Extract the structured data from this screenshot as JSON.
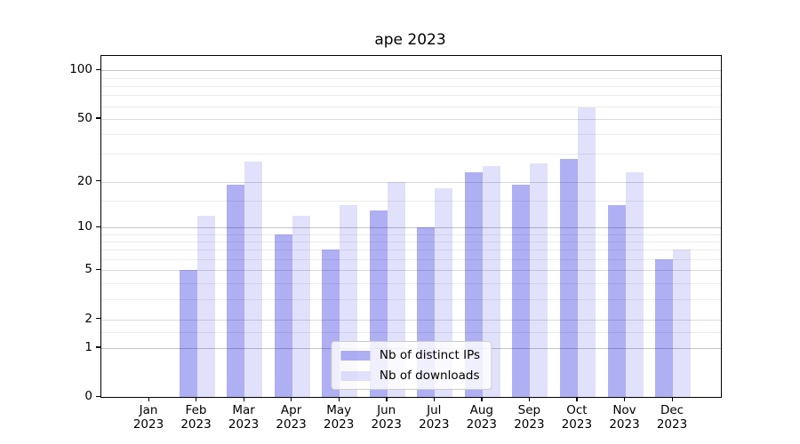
{
  "title": "ape 2023",
  "chart_data": {
    "type": "bar",
    "title": "ape 2023",
    "categories": [
      "Jan 2023",
      "Feb 2023",
      "Mar 2023",
      "Apr 2023",
      "May 2023",
      "Jun 2023",
      "Jul 2023",
      "Aug 2023",
      "Sep 2023",
      "Oct 2023",
      "Nov 2023",
      "Dec 2023"
    ],
    "series": [
      {
        "name": "Nb of distinct IPs",
        "values": [
          0,
          5,
          19,
          9,
          7,
          13,
          10,
          23,
          19,
          28,
          14,
          6
        ]
      },
      {
        "name": "Nb of downloads",
        "values": [
          0,
          12,
          27,
          12,
          14,
          20,
          18,
          25,
          26,
          59,
          23,
          7
        ]
      }
    ],
    "xlabel": "",
    "ylabel": "",
    "yscale": "log1p",
    "ylim": [
      0,
      123
    ],
    "yticks": [
      0,
      1,
      2,
      5,
      10,
      20,
      50,
      100
    ],
    "yticks_minor": [
      1.5,
      3,
      4,
      6,
      7,
      8,
      9,
      15,
      30,
      40,
      60,
      70,
      80,
      90
    ],
    "grid": true,
    "legend_position": "lower center"
  },
  "legend": {
    "items": [
      {
        "label": "Nb of distinct IPs",
        "color_key": "bar_dark"
      },
      {
        "label": "Nb of downloads",
        "color_key": "bar_light"
      }
    ]
  },
  "colors": {
    "bar_dark": "rgba(26,26,224,0.35)",
    "bar_light": "rgba(26,26,224,0.13)",
    "grid_decade": "#c4c4c4",
    "grid_labeled": "#dbdbdb",
    "grid_minor": "#ececec",
    "spine": "#000000",
    "legend_border": "#cccccc"
  }
}
